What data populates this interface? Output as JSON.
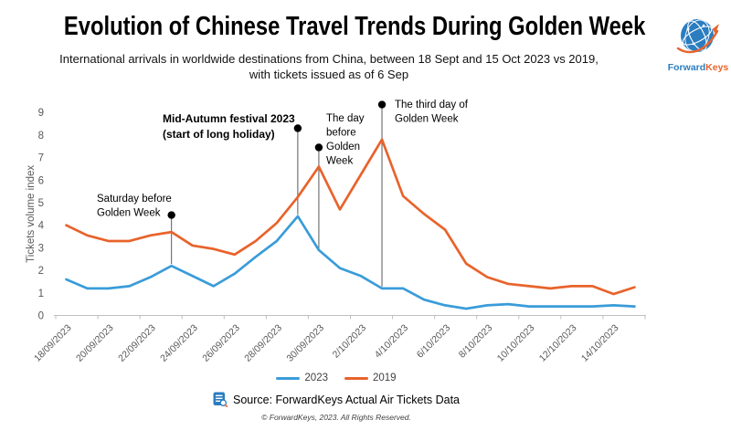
{
  "header": {
    "title": "Evolution of Chinese Travel Trends During Golden Week",
    "subtitle_line1": "International arrivals in worldwide destinations from China,  between 18 Sept and 15 Oct 2023 vs 2019,",
    "subtitle_line2": "with tickets issued as of 6 Sep"
  },
  "logo": {
    "text_primary": "Forward",
    "text_secondary": "Keys",
    "primary_color": "#2b7dc0",
    "secondary_color": "#e8632c"
  },
  "chart_data": {
    "type": "line",
    "ylabel": "Tickets volume index",
    "ylim": [
      0,
      9
    ],
    "yticks": [
      0,
      1,
      2,
      3,
      4,
      5,
      6,
      7,
      8,
      9
    ],
    "grid": false,
    "legend_position": "bottom",
    "x": [
      "18/09/2023",
      "19/09/2023",
      "20/09/2023",
      "21/09/2023",
      "22/09/2023",
      "23/09/2023",
      "24/09/2023",
      "25/09/2023",
      "26/09/2023",
      "27/09/2023",
      "28/09/2023",
      "29/09/2023",
      "30/09/2023",
      "1/10/2023",
      "2/10/2023",
      "3/10/2023",
      "4/10/2023",
      "5/10/2023",
      "6/10/2023",
      "7/10/2023",
      "8/10/2023",
      "9/10/2023",
      "10/10/2023",
      "11/10/2023",
      "12/10/2023",
      "13/10/2023",
      "14/10/2023",
      "15/10/2023"
    ],
    "xtick_every": 2,
    "series": [
      {
        "name": "2023",
        "color": "#3a9cd9",
        "values": [
          1.6,
          1.2,
          1.2,
          1.3,
          1.7,
          2.2,
          1.75,
          1.3,
          1.85,
          2.6,
          3.3,
          4.4,
          2.9,
          2.1,
          1.75,
          1.2,
          1.2,
          0.7,
          0.45,
          0.3,
          0.45,
          0.5,
          0.4,
          0.4,
          0.4,
          0.4,
          0.45,
          0.4
        ]
      },
      {
        "name": "2019",
        "color": "#e8632c",
        "values": [
          4.0,
          3.55,
          3.3,
          3.3,
          3.55,
          3.7,
          3.1,
          2.95,
          2.7,
          3.3,
          4.1,
          5.25,
          6.6,
          4.7,
          6.25,
          7.8,
          5.3,
          4.5,
          3.8,
          2.3,
          1.7,
          1.4,
          1.3,
          1.2,
          1.3,
          1.3,
          0.95,
          1.25
        ]
      }
    ],
    "annotations": [
      {
        "text_lines": [
          "Saturday before",
          "Golden Week"
        ],
        "bold": false,
        "date": "23/09/2023",
        "dot_value": 4.45,
        "line_end_value": 2.2,
        "text_side": "left"
      },
      {
        "text_lines": [
          "Mid-Autumn festival 2023",
          "(start of long holiday)"
        ],
        "bold": true,
        "date": "29/09/2023",
        "dot_value": 8.3,
        "line_end_value": 4.4,
        "text_side": "left"
      },
      {
        "text_lines": [
          "The day",
          "before",
          "Golden",
          "Week"
        ],
        "bold": false,
        "date": "30/09/2023",
        "dot_value": 7.45,
        "line_end_value": 2.9,
        "text_side": "right"
      },
      {
        "text_lines": [
          "The third day of",
          "Golden Week"
        ],
        "bold": false,
        "date": "3/10/2023",
        "dot_value": 9.35,
        "line_end_value": 1.2,
        "text_side": "right"
      }
    ]
  },
  "footer": {
    "source_label": "Source: ForwardKeys Actual Air Tickets Data",
    "copyright": "© ForwardKeys, 2023. All Rights Reserved."
  }
}
